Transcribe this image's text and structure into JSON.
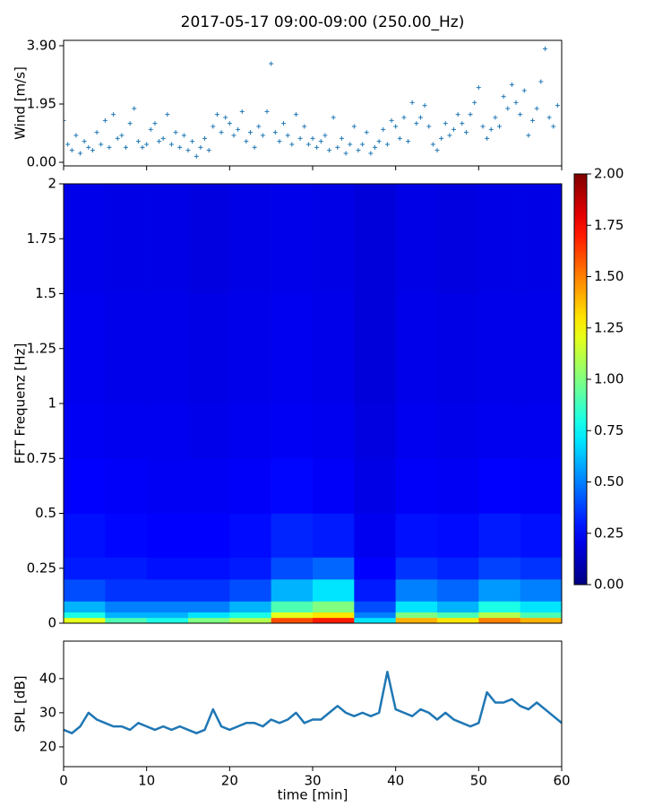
{
  "chart_data": [
    {
      "type": "scatter",
      "title": "2017-05-17 09:00-09:00 (250.00_Hz)",
      "ylabel": "Wind [m/s]",
      "color": "#1f77b4",
      "marker": "+",
      "xlim": [
        0,
        60
      ],
      "xticks": [
        0,
        10,
        20,
        30,
        40,
        50,
        60
      ],
      "ylim": [
        -0.12,
        4.08
      ],
      "yticks": [
        {
          "value": 0,
          "label": "0.00"
        },
        {
          "value": 1.95,
          "label": "1.95"
        },
        {
          "value": 3.9,
          "label": "3.90"
        }
      ],
      "x": [
        0,
        0.5,
        1,
        1.5,
        2,
        2.5,
        3,
        3.5,
        4,
        4.5,
        5,
        5.5,
        6,
        6.5,
        7,
        7.5,
        8,
        8.5,
        9,
        9.5,
        10,
        10.5,
        11,
        11.5,
        12,
        12.5,
        13,
        13.5,
        14,
        14.5,
        15,
        15.5,
        16,
        16.5,
        17,
        17.5,
        18,
        18.5,
        19,
        19.5,
        20,
        20.5,
        21,
        21.5,
        22,
        22.5,
        23,
        23.5,
        24,
        24.5,
        25,
        25.5,
        26,
        26.5,
        27,
        27.5,
        28,
        28.5,
        29,
        29.5,
        30,
        30.5,
        31,
        31.5,
        32,
        32.5,
        33,
        33.5,
        34,
        34.5,
        35,
        35.5,
        36,
        36.5,
        37,
        37.5,
        38,
        38.5,
        39,
        39.5,
        40,
        40.5,
        41,
        41.5,
        42,
        42.5,
        43,
        43.5,
        44,
        44.5,
        45,
        45.5,
        46,
        46.5,
        47,
        47.5,
        48,
        48.5,
        49,
        49.5,
        50,
        50.5,
        51,
        51.5,
        52,
        52.5,
        53,
        53.5,
        54,
        54.5,
        55,
        55.5,
        56,
        56.5,
        57,
        57.5,
        58,
        58.5,
        59,
        59.5
      ],
      "values": [
        1.4,
        0.6,
        0.4,
        0.9,
        0.3,
        0.7,
        0.5,
        0.4,
        1.0,
        0.6,
        1.4,
        0.5,
        1.6,
        0.8,
        0.9,
        0.5,
        1.3,
        1.8,
        0.7,
        0.5,
        0.6,
        1.1,
        1.3,
        0.7,
        0.8,
        1.6,
        0.6,
        1.0,
        0.5,
        0.9,
        0.4,
        0.7,
        0.2,
        0.5,
        0.8,
        0.4,
        1.2,
        1.6,
        1.0,
        1.5,
        1.3,
        0.9,
        1.1,
        1.7,
        0.7,
        1.0,
        0.5,
        1.2,
        0.9,
        1.7,
        3.3,
        1.0,
        0.7,
        1.3,
        0.9,
        0.6,
        1.6,
        0.8,
        1.2,
        0.6,
        0.8,
        0.5,
        0.7,
        0.9,
        0.4,
        1.5,
        0.5,
        0.8,
        0.3,
        0.6,
        1.2,
        0.4,
        0.6,
        1.0,
        0.3,
        0.5,
        0.7,
        1.1,
        0.6,
        1.4,
        1.2,
        0.8,
        1.5,
        0.7,
        2.0,
        1.3,
        1.5,
        1.9,
        1.2,
        0.6,
        0.4,
        0.8,
        1.3,
        0.9,
        1.1,
        1.6,
        1.3,
        1.0,
        1.6,
        2.0,
        2.5,
        1.2,
        0.8,
        1.1,
        1.5,
        1.2,
        2.2,
        1.8,
        2.6,
        2.0,
        1.6,
        2.4,
        0.9,
        1.4,
        1.8,
        2.7,
        3.8,
        1.5,
        1.2,
        1.9
      ]
    },
    {
      "type": "heatmap",
      "ylabel": "FFT Frequenz [Hz]",
      "colormap": "jet",
      "xlim": [
        0,
        60
      ],
      "ylim": [
        0,
        2
      ],
      "yticks": [
        0,
        0.25,
        0.5,
        0.75,
        1,
        1.25,
        1.5,
        1.75,
        2
      ],
      "x_edges": [
        0,
        5,
        10,
        15,
        20,
        25,
        30,
        35,
        40,
        45,
        50,
        55,
        60
      ],
      "y_edges": [
        0,
        0.025,
        0.05,
        0.1,
        0.2,
        0.3,
        0.5,
        0.75,
        1,
        1.5,
        2
      ],
      "z": [
        [
          1.2,
          0.9,
          0.8,
          1.0,
          1.1,
          1.6,
          1.7,
          0.7,
          1.4,
          1.3,
          1.5,
          1.4
        ],
        [
          0.8,
          0.6,
          0.6,
          0.7,
          0.8,
          1.2,
          1.3,
          0.5,
          1.0,
          0.9,
          1.1,
          0.9
        ],
        [
          0.6,
          0.5,
          0.5,
          0.5,
          0.6,
          0.9,
          1.0,
          0.4,
          0.7,
          0.6,
          0.8,
          0.7
        ],
        [
          0.4,
          0.35,
          0.35,
          0.35,
          0.4,
          0.6,
          0.7,
          0.3,
          0.5,
          0.45,
          0.55,
          0.5
        ],
        [
          0.3,
          0.3,
          0.28,
          0.28,
          0.3,
          0.4,
          0.45,
          0.25,
          0.35,
          0.32,
          0.38,
          0.35
        ],
        [
          0.28,
          0.26,
          0.25,
          0.25,
          0.27,
          0.32,
          0.3,
          0.22,
          0.28,
          0.27,
          0.3,
          0.28
        ],
        [
          0.25,
          0.24,
          0.23,
          0.23,
          0.24,
          0.26,
          0.24,
          0.2,
          0.24,
          0.23,
          0.25,
          0.24
        ],
        [
          0.23,
          0.22,
          0.22,
          0.21,
          0.22,
          0.23,
          0.22,
          0.19,
          0.22,
          0.21,
          0.22,
          0.22
        ],
        [
          0.22,
          0.21,
          0.21,
          0.2,
          0.21,
          0.22,
          0.21,
          0.18,
          0.21,
          0.2,
          0.21,
          0.21
        ],
        [
          0.21,
          0.2,
          0.2,
          0.19,
          0.2,
          0.21,
          0.2,
          0.18,
          0.2,
          0.19,
          0.2,
          0.2
        ]
      ],
      "clim": [
        0,
        2
      ],
      "cticks": [
        {
          "value": 0,
          "label": "0.00"
        },
        {
          "value": 0.25,
          "label": "0.25"
        },
        {
          "value": 0.5,
          "label": "0.50"
        },
        {
          "value": 0.75,
          "label": "0.75"
        },
        {
          "value": 1,
          "label": "1.00"
        },
        {
          "value": 1.25,
          "label": "1.25"
        },
        {
          "value": 1.5,
          "label": "1.50"
        },
        {
          "value": 1.75,
          "label": "1.75"
        },
        {
          "value": 2,
          "label": "2.00"
        }
      ]
    },
    {
      "type": "line",
      "ylabel": "SPL [dB]",
      "xlabel": "time [min]",
      "color": "#1f77b4",
      "xlim": [
        0,
        60
      ],
      "xticks": [
        0,
        10,
        20,
        30,
        40,
        50,
        60
      ],
      "ylim": [
        14.2,
        51
      ],
      "yticks": [
        20,
        30,
        40
      ],
      "x": [
        0,
        1,
        2,
        3,
        4,
        5,
        6,
        7,
        8,
        9,
        10,
        11,
        12,
        13,
        14,
        15,
        16,
        17,
        18,
        19,
        20,
        21,
        22,
        23,
        24,
        25,
        26,
        27,
        28,
        29,
        30,
        31,
        32,
        33,
        34,
        35,
        36,
        37,
        38,
        39,
        40,
        41,
        42,
        43,
        44,
        45,
        46,
        47,
        48,
        49,
        50,
        51,
        52,
        53,
        54,
        55,
        56,
        57,
        58,
        59,
        60
      ],
      "values": [
        25,
        24,
        26,
        30,
        28,
        27,
        26,
        26,
        25,
        27,
        26,
        25,
        26,
        25,
        26,
        25,
        24,
        25,
        31,
        26,
        25,
        26,
        27,
        27,
        26,
        28,
        27,
        28,
        30,
        27,
        28,
        28,
        30,
        32,
        30,
        29,
        30,
        29,
        30,
        42,
        31,
        30,
        29,
        31,
        30,
        28,
        30,
        28,
        27,
        26,
        27,
        36,
        33,
        33,
        34,
        32,
        31,
        33,
        31,
        29,
        27
      ]
    }
  ]
}
